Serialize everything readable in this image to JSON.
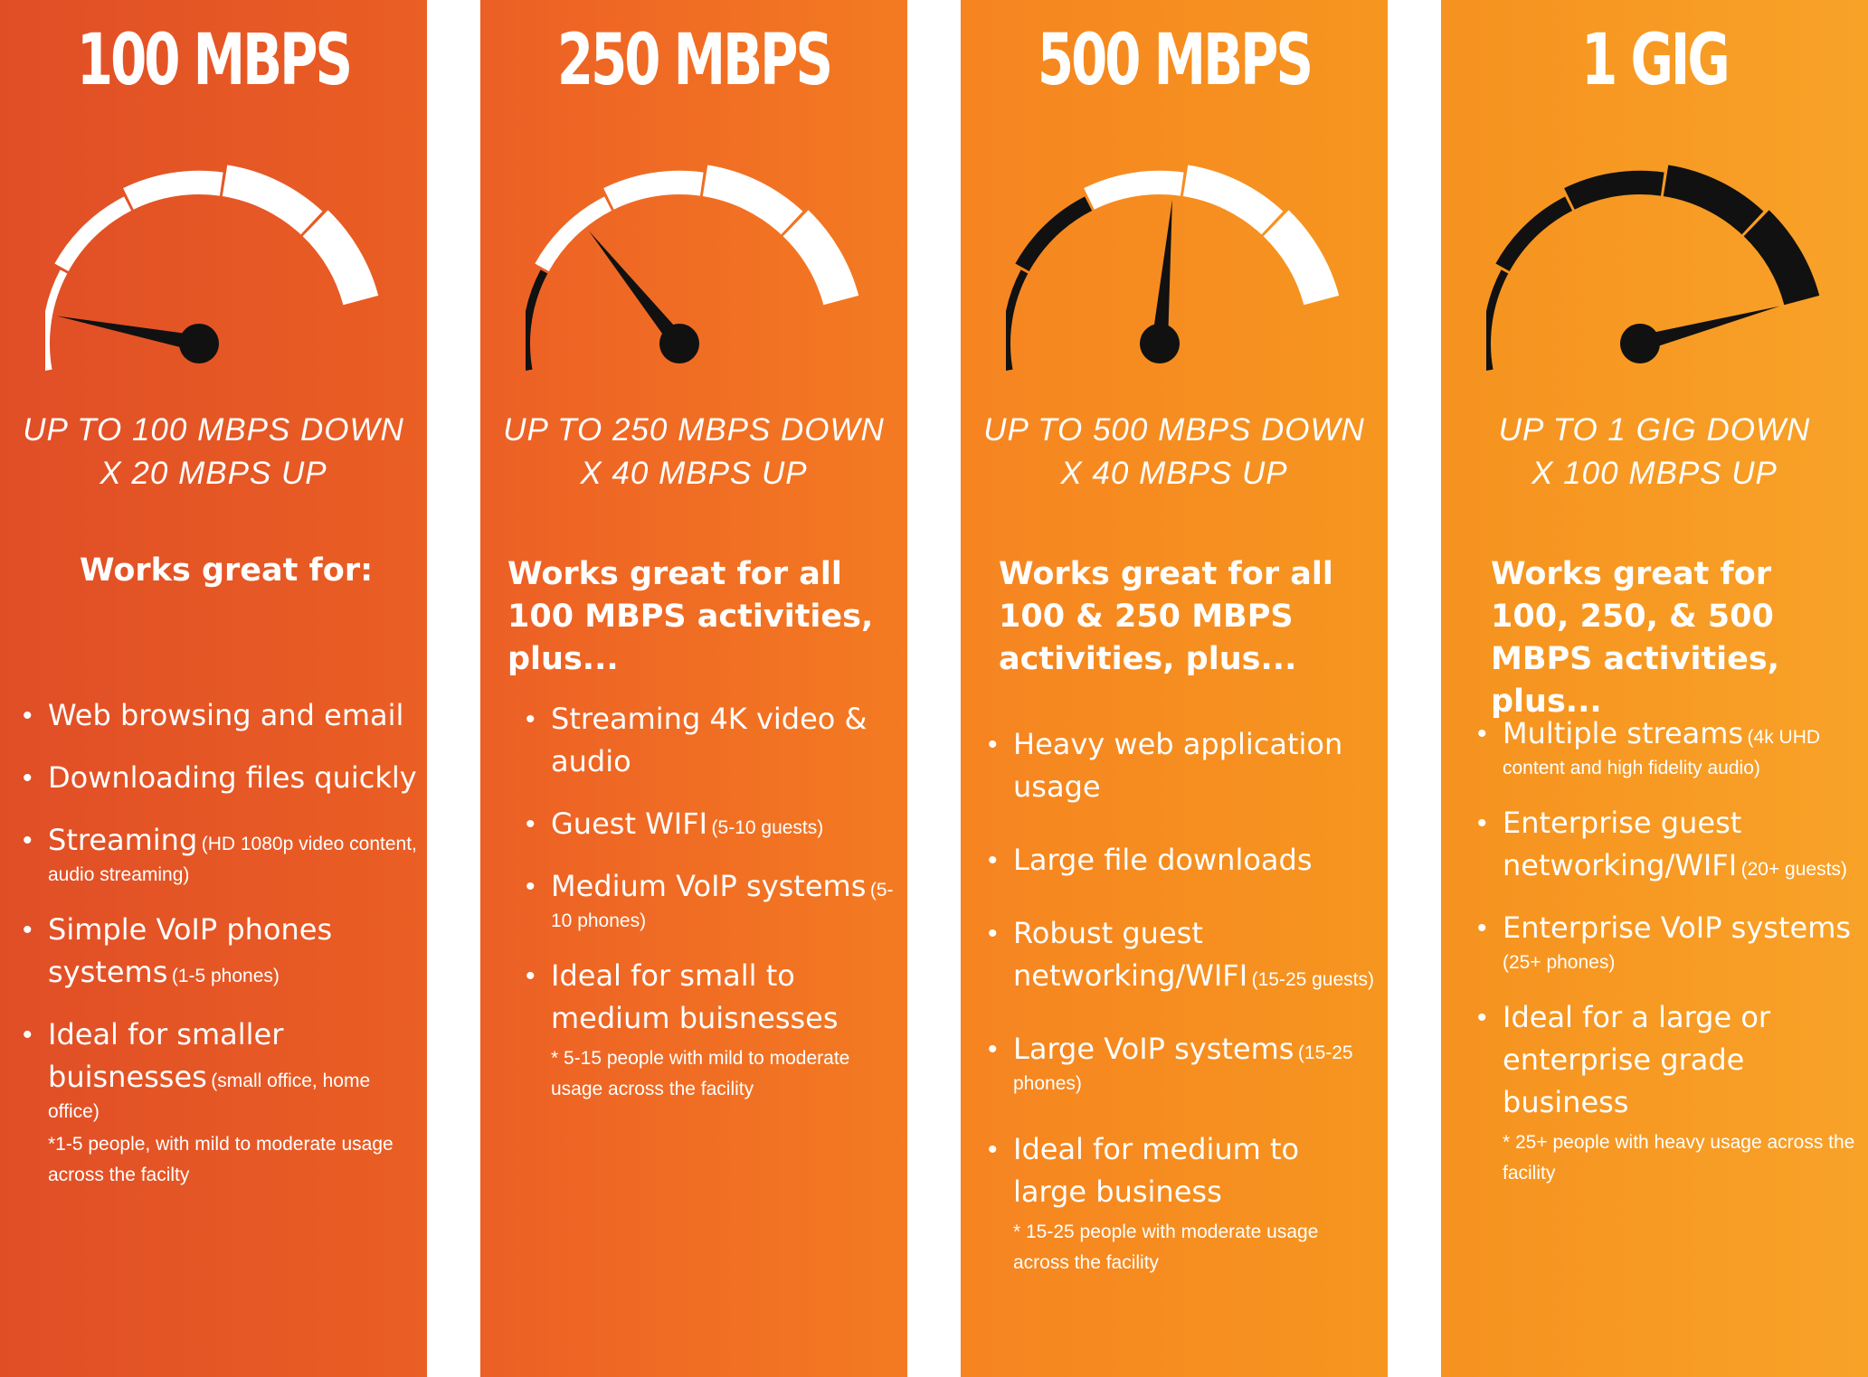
{
  "plans": [
    {
      "title": "100 MBPS",
      "level": 0.12,
      "down": "UP TO 100 MBPS DOWN",
      "up": "X 20 MBPS UP",
      "heading": "Works great for:",
      "features": [
        {
          "label": "Web browsing and email"
        },
        {
          "label": "Downloading files quickly"
        },
        {
          "label": "Streaming",
          "note": "(HD 1080p video content, audio streaming)"
        },
        {
          "label": "Simple VoIP phones systems",
          "note": "(1-5 phones)"
        },
        {
          "label": "Ideal for smaller buisnesses",
          "note": "(small office, home office)",
          "footnote": "*1-5 people, with mild  to moderate usage across the facilty"
        }
      ]
    },
    {
      "title": "250 MBPS",
      "level": 0.35,
      "down": "UP TO 250 MBPS DOWN",
      "up": "X 40 MBPS UP",
      "heading": "Works great for all 100 MBPS activities, plus...",
      "features": [
        {
          "label": "Streaming 4K video & audio"
        },
        {
          "label": "Guest WIFI",
          "note": "(5-10 guests)"
        },
        {
          "label": "Medium VoIP systems",
          "note": "(5-10 phones)"
        },
        {
          "label": "Ideal for small to medium buisnesses",
          "footnote": "* 5-15 people with mild to moderate usage across the facility"
        }
      ]
    },
    {
      "title": "500 MBPS",
      "level": 0.6,
      "down": "UP TO 500 MBPS DOWN",
      "up": "X 40 MBPS UP",
      "heading": "Works great for all 100 & 250 MBPS activities, plus...",
      "features": [
        {
          "label": "Heavy web application usage"
        },
        {
          "label": "Large file downloads"
        },
        {
          "label": "Robust guest networking/WIFI",
          "note": "(15-25 guests)"
        },
        {
          "label": "Large VoIP systems",
          "note": "(15-25 phones)"
        },
        {
          "label": "Ideal for medium to large business",
          "footnote": "* 15-25 people with moderate usage across the facility"
        }
      ]
    },
    {
      "title": "1 GIG",
      "level": 1.0,
      "down": "UP TO 1 GIG DOWN",
      "up": "X 100 MBPS UP",
      "heading": "Works great for 100, 250, & 500 MBPS activities, plus...",
      "features": [
        {
          "label": "Multiple streams",
          "note": "(4k UHD content and high fidelity audio)"
        },
        {
          "label": "Enterprise guest networking/WIFI",
          "note": "(20+ guests)"
        },
        {
          "label": "Enterprise VoIP systems",
          "note": "(25+ phones)"
        },
        {
          "label": "Ideal for a large or enterprise grade business",
          "footnote": "* 25+ people with heavy usage across the facility"
        }
      ]
    }
  ],
  "colors": {
    "panel_gradients": [
      [
        "#e04e26",
        "#ea5f24"
      ],
      [
        "#ec5f25",
        "#f47b22"
      ],
      [
        "#f68421",
        "#f6961f"
      ],
      [
        "#f6921f",
        "#f8a228"
      ]
    ],
    "gauge_dark": "#111111",
    "gauge_light": "#ffffff",
    "text": "#ffffff"
  }
}
